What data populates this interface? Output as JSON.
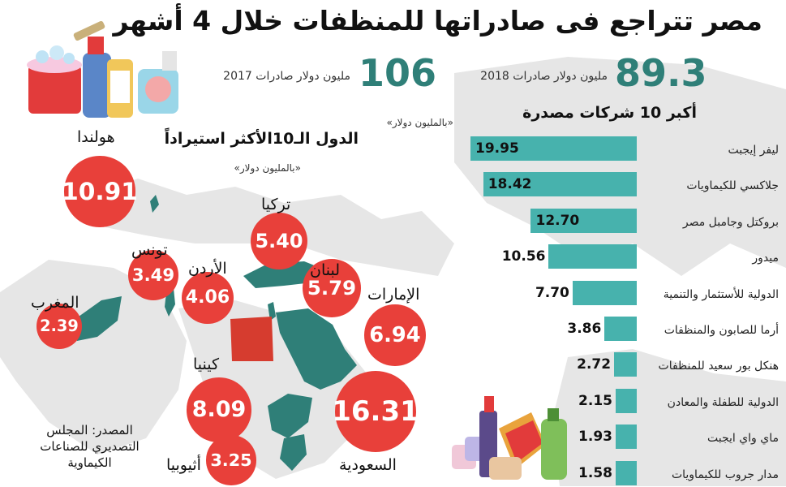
{
  "header": {
    "title": "مصر تتراجع فى صادراتها للمنظفات خلال 4 أشهر",
    "exports_2018_value": "89.3",
    "exports_2018_label": "مليون دولار صادرات 2018",
    "exports_2017_value": "106",
    "exports_2017_label": "مليون دولار صادرات 2017"
  },
  "colors": {
    "bar": "#47b2ad",
    "bubble": "#e8403a",
    "highlight_country": "#d63c2f",
    "land": "#2f7f78",
    "accent_number": "#2f7f78"
  },
  "map_section": {
    "title": "الدول الـ10الأكثر استيراداً",
    "unit": "«بالمليون دولار»"
  },
  "source": {
    "line1": "المصدر: المجلس",
    "line2": "التصديري للصناعات",
    "line3": "الكيماوية"
  },
  "chart_data": [
    {
      "type": "bar",
      "title": "أكبر 10 شركات مصدرة",
      "subtitle": "«بالمليون دولار»",
      "categories": [
        "ليفر إيجبت",
        "جلاكسي للكيماويات",
        "بروكتل وجامبل مصر",
        "ميدور",
        "الدولية للأستثمار والتنمية",
        "أرما للصابون والمنظفات",
        "هنكل بور سعيد للمنظفات",
        "الدولية للطفلة والمعادن",
        "ماي واي ايجبت",
        "مدار جروب للكيماويات"
      ],
      "values": [
        19.95,
        18.42,
        12.7,
        10.56,
        7.7,
        3.86,
        2.72,
        2.15,
        1.93,
        1.58
      ],
      "value_labels": [
        "19.95",
        "18.42",
        "12.70",
        "10.56",
        "7.70",
        "3.86",
        "2.72",
        "2.15",
        "1.93",
        "1.58"
      ]
    },
    {
      "type": "scatter",
      "title": "الدول الـ10الأكثر استيراداً",
      "subtitle": "«بالمليون دولار»",
      "categories": [
        "هولندا",
        "تركيا",
        "تونس",
        "الأردن",
        "لبنان",
        "المغرب",
        "الإمارات",
        "كينيا",
        "السعودية",
        "أثيوبيا"
      ],
      "values": [
        10.91,
        5.4,
        3.49,
        4.06,
        5.79,
        2.39,
        6.94,
        8.09,
        16.31,
        3.25
      ],
      "value_labels": [
        "10.91",
        "5.40",
        "3.49",
        "4.06",
        "5.79",
        "2.39",
        "6.94",
        "8.09",
        "16.31",
        "3.25"
      ]
    }
  ]
}
